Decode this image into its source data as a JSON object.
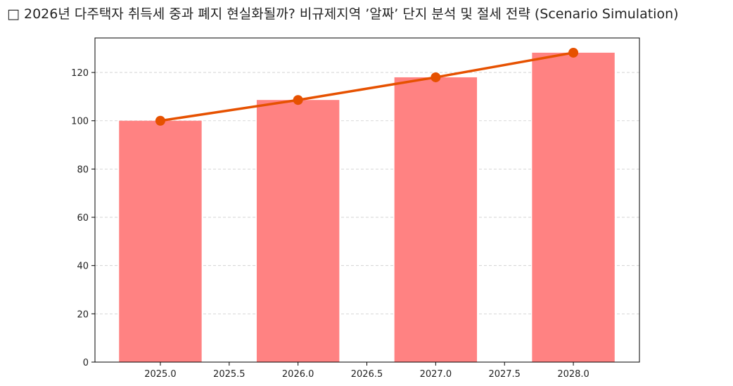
{
  "chart_data": {
    "type": "bar",
    "title": "□ 2026년 다주택자 취득세 중과 폐지 현실화될까? 비규제지역 ’알짜’ 단지 분석 및 절세 전략 (Scenario Simulation)",
    "x": [
      2025,
      2026,
      2027,
      2028
    ],
    "series": [
      {
        "type": "bar",
        "color": "#ff8282",
        "values": [
          100,
          108.6,
          118,
          128.2
        ]
      },
      {
        "type": "line",
        "color": "#e65100",
        "values": [
          100,
          108.6,
          118,
          128.2
        ]
      }
    ],
    "xlim": [
      2024.525,
      2028.48
    ],
    "xticks": [
      {
        "value": 2025,
        "label": "2025.0"
      },
      2025.5,
      {
        "value": 2026,
        "label": "2026.0"
      },
      2026.5,
      {
        "value": 2027,
        "label": "2027.0"
      },
      2027.5,
      {
        "value": 2028,
        "label": "2028.0"
      }
    ],
    "ylim": [
      0,
      134.3
    ],
    "yticks": [
      0,
      20,
      40,
      60,
      80,
      100,
      120
    ],
    "grid": true
  }
}
